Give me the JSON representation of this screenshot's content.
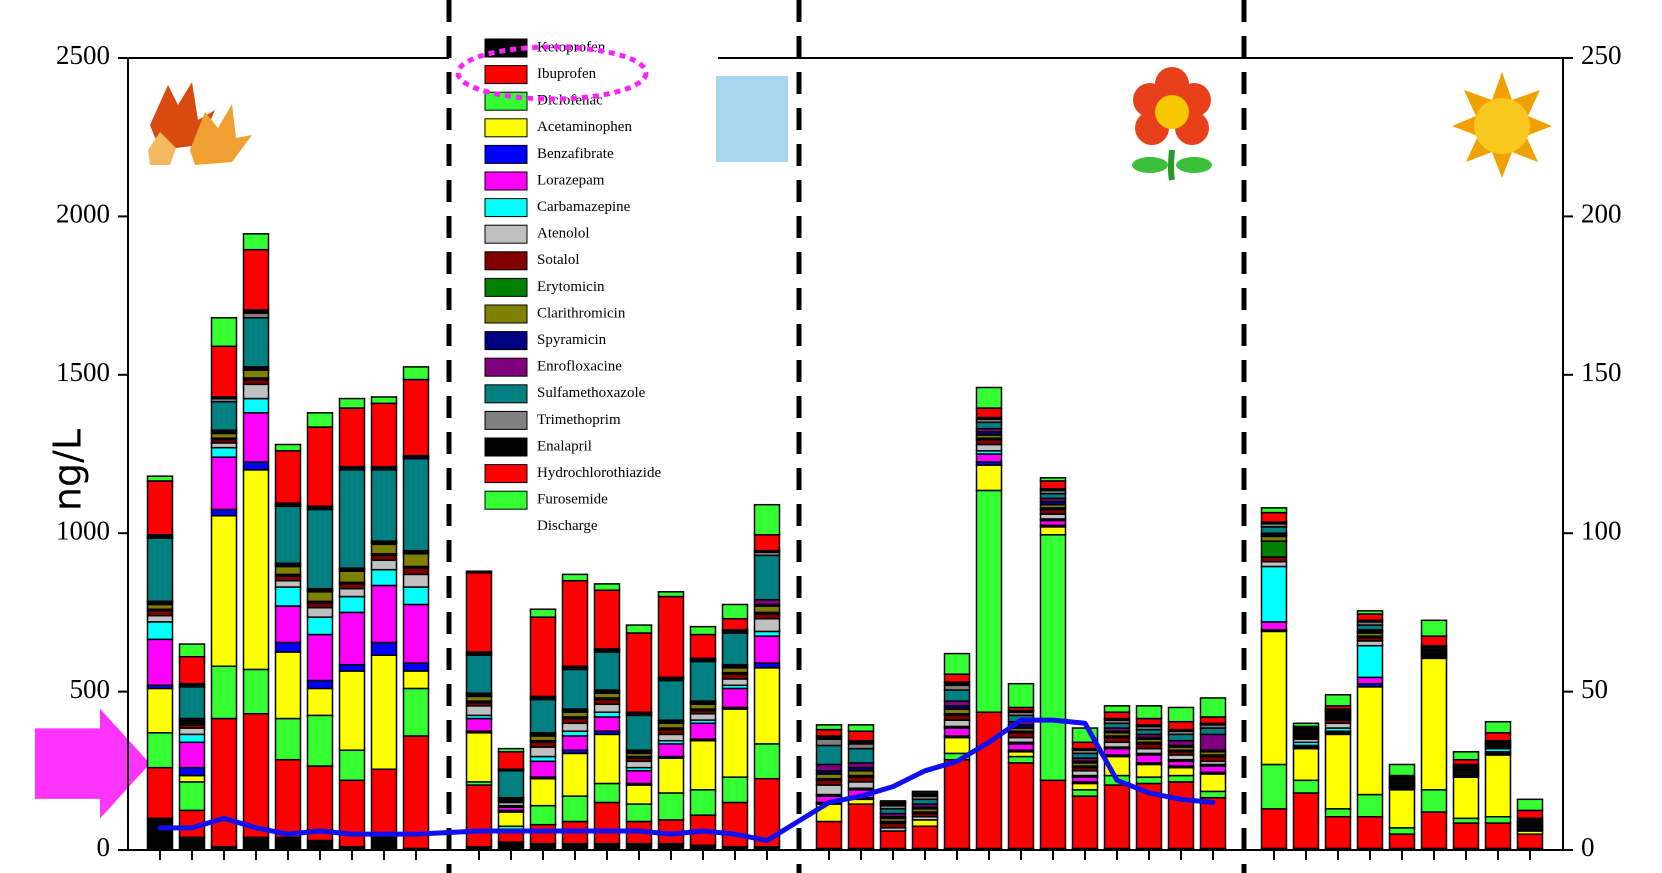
{
  "chart_data": {
    "type": "bar",
    "stacked": true,
    "ylabel": "ng/L",
    "categories": [
      null,
      null,
      null,
      null,
      null,
      null,
      null,
      null,
      null,
      null,
      null,
      null,
      null,
      null,
      null,
      null,
      null,
      null,
      null,
      null,
      null,
      null,
      null,
      null,
      null,
      null,
      null,
      null,
      null,
      null,
      null,
      null,
      null,
      null,
      null,
      null,
      null,
      null,
      null,
      null,
      null
    ],
    "ylim": [
      0,
      2500
    ],
    "yticks": [
      0,
      500,
      1000,
      1500,
      2000,
      2500
    ],
    "y2lim": [
      0,
      250
    ],
    "y2ticks": [
      0,
      50,
      100,
      150,
      200,
      250
    ],
    "series": [
      {
        "name": "Ketoprofen",
        "color": "#000000",
        "values": [
          100,
          40,
          10,
          40,
          40,
          30,
          10,
          40,
          5,
          10,
          25,
          20,
          20,
          20,
          20,
          20,
          15,
          10,
          10,
          5,
          5,
          5,
          5,
          5,
          5,
          5,
          5,
          5,
          5,
          5,
          5,
          5,
          5,
          5,
          5,
          5,
          5,
          5,
          5,
          5,
          5
        ]
      },
      {
        "name": "Ibuprofen",
        "color": "#ff0000",
        "values": [
          160,
          85,
          405,
          390,
          245,
          235,
          210,
          215,
          355,
          195,
          40,
          60,
          70,
          130,
          70,
          75,
          95,
          140,
          215,
          85,
          140,
          55,
          70,
          280,
          430,
          270,
          215,
          165,
          200,
          205,
          210,
          160,
          125,
          175,
          100,
          100,
          45,
          115,
          80,
          80,
          45
        ]
      },
      {
        "name": "Diclofenac",
        "color": "#33ff33",
        "values": [
          110,
          90,
          165,
          140,
          130,
          160,
          95,
          0,
          150,
          10,
          10,
          60,
          80,
          60,
          55,
          85,
          80,
          80,
          110,
          0,
          0,
          0,
          0,
          20,
          700,
          20,
          775,
          20,
          30,
          20,
          20,
          20,
          140,
          40,
          25,
          70,
          20,
          70,
          15,
          20,
          0
        ]
      },
      {
        "name": "Acetaminophen",
        "color": "#ffff00",
        "values": [
          140,
          20,
          475,
          630,
          210,
          85,
          250,
          360,
          55,
          155,
          45,
          85,
          135,
          155,
          60,
          110,
          155,
          215,
          240,
          55,
          15,
          0,
          20,
          50,
          80,
          15,
          25,
          20,
          60,
          40,
          25,
          55,
          420,
          100,
          235,
          340,
          120,
          415,
          130,
          195,
          10
        ]
      },
      {
        "name": "Benzafibrate",
        "color": "#0000ff",
        "values": [
          10,
          25,
          20,
          25,
          30,
          25,
          20,
          40,
          25,
          5,
          5,
          5,
          10,
          10,
          5,
          5,
          5,
          5,
          15,
          5,
          5,
          0,
          0,
          5,
          10,
          5,
          5,
          5,
          5,
          5,
          5,
          5,
          5,
          5,
          5,
          10,
          5,
          5,
          5,
          5,
          5
        ]
      },
      {
        "name": "Lorazepam",
        "color": "#ff00ff",
        "values": [
          145,
          80,
          165,
          155,
          115,
          145,
          165,
          180,
          185,
          40,
          10,
          50,
          45,
          45,
          40,
          40,
          50,
          60,
          85,
          20,
          25,
          0,
          0,
          25,
          25,
          20,
          15,
          15,
          20,
          25,
          15,
          20,
          25,
          5,
          5,
          20,
          5,
          5,
          5,
          5,
          5
        ]
      },
      {
        "name": "Carbamazepine",
        "color": "#00ffff",
        "values": [
          55,
          25,
          30,
          45,
          60,
          55,
          50,
          50,
          55,
          10,
          5,
          15,
          15,
          15,
          10,
          10,
          10,
          10,
          15,
          5,
          5,
          0,
          0,
          5,
          10,
          5,
          5,
          5,
          5,
          5,
          5,
          5,
          175,
          10,
          10,
          100,
          5,
          5,
          5,
          10,
          5
        ]
      },
      {
        "name": "Atenolol",
        "color": "#c0c0c0",
        "values": [
          20,
          20,
          15,
          45,
          20,
          30,
          25,
          30,
          40,
          30,
          10,
          30,
          25,
          25,
          20,
          20,
          20,
          20,
          40,
          30,
          20,
          10,
          10,
          20,
          20,
          15,
          15,
          15,
          15,
          15,
          15,
          10,
          15,
          10,
          15,
          15,
          5,
          5,
          5,
          5,
          5
        ]
      },
      {
        "name": "Sotalol",
        "color": "#800000",
        "values": [
          15,
          10,
          10,
          15,
          15,
          15,
          15,
          15,
          20,
          10,
          5,
          15,
          15,
          15,
          10,
          15,
          10,
          15,
          15,
          15,
          15,
          15,
          10,
          15,
          15,
          15,
          15,
          10,
          15,
          15,
          10,
          15,
          15,
          5,
          10,
          10,
          5,
          5,
          5,
          5,
          5
        ]
      },
      {
        "name": "Erytomicin",
        "color": "#008000",
        "values": [
          5,
          5,
          5,
          5,
          5,
          5,
          5,
          5,
          5,
          5,
          0,
          5,
          5,
          5,
          5,
          5,
          5,
          5,
          5,
          5,
          5,
          5,
          5,
          5,
          5,
          5,
          5,
          5,
          5,
          5,
          5,
          5,
          50,
          0,
          5,
          5,
          0,
          0,
          0,
          0,
          0
        ]
      },
      {
        "name": "Clarithromicin",
        "color": "#808000",
        "values": [
          15,
          5,
          15,
          25,
          25,
          30,
          35,
          30,
          40,
          15,
          5,
          15,
          15,
          15,
          10,
          15,
          15,
          15,
          20,
          15,
          15,
          10,
          10,
          15,
          10,
          10,
          10,
          10,
          10,
          10,
          10,
          10,
          15,
          5,
          5,
          10,
          5,
          5,
          5,
          5,
          5
        ]
      },
      {
        "name": "Spyramicin",
        "color": "#000080",
        "values": [
          5,
          5,
          5,
          5,
          5,
          5,
          5,
          5,
          5,
          5,
          0,
          5,
          5,
          5,
          5,
          5,
          5,
          5,
          5,
          10,
          10,
          5,
          5,
          10,
          10,
          10,
          10,
          5,
          5,
          5,
          5,
          5,
          5,
          5,
          5,
          5,
          0,
          0,
          0,
          0,
          0
        ]
      },
      {
        "name": "Enrofloxacine",
        "color": "#800080",
        "values": [
          5,
          5,
          5,
          5,
          5,
          5,
          5,
          5,
          5,
          5,
          5,
          5,
          5,
          5,
          5,
          5,
          5,
          5,
          15,
          20,
          15,
          10,
          10,
          15,
          10,
          10,
          10,
          10,
          10,
          10,
          15,
          50,
          5,
          5,
          5,
          5,
          0,
          0,
          0,
          0,
          0
        ]
      },
      {
        "name": "Sulfamethoxazole",
        "color": "#008080",
        "values": [
          200,
          100,
          90,
          155,
          180,
          250,
          310,
          225,
          290,
          120,
          85,
          105,
          125,
          120,
          110,
          125,
          125,
          100,
          140,
          60,
          45,
          15,
          15,
          35,
          20,
          20,
          15,
          15,
          15,
          15,
          20,
          20,
          20,
          5,
          5,
          15,
          5,
          5,
          5,
          5,
          5
        ]
      },
      {
        "name": "Trimethoprim",
        "color": "#808080",
        "values": [
          5,
          5,
          10,
          15,
          5,
          5,
          5,
          5,
          5,
          5,
          0,
          5,
          5,
          5,
          5,
          5,
          5,
          5,
          10,
          20,
          15,
          10,
          10,
          15,
          10,
          10,
          10,
          10,
          10,
          10,
          10,
          10,
          10,
          5,
          5,
          10,
          0,
          0,
          0,
          0,
          0
        ]
      },
      {
        "name": "Enalapril",
        "color": "#000000",
        "values": [
          5,
          5,
          5,
          10,
          5,
          5,
          5,
          5,
          5,
          5,
          5,
          5,
          5,
          5,
          5,
          5,
          5,
          5,
          5,
          10,
          10,
          5,
          5,
          10,
          5,
          5,
          5,
          5,
          5,
          5,
          5,
          5,
          5,
          5,
          5,
          5,
          5,
          5,
          5,
          5,
          5
        ]
      },
      {
        "name": "Hydrochlorothiazide",
        "color": "#ff0000",
        "values": [
          170,
          85,
          160,
          190,
          165,
          250,
          185,
          200,
          240,
          250,
          55,
          250,
          270,
          185,
          250,
          255,
          75,
          35,
          50,
          20,
          30,
          5,
          5,
          25,
          30,
          10,
          25,
          20,
          20,
          20,
          25,
          20,
          30,
          5,
          10,
          20,
          5,
          30,
          15,
          25,
          25
        ]
      },
      {
        "name": "Furosemide",
        "color": "#33ff33",
        "values": [
          15,
          40,
          90,
          50,
          20,
          45,
          30,
          20,
          40,
          5,
          10,
          25,
          20,
          20,
          25,
          15,
          25,
          45,
          95,
          15,
          20,
          5,
          5,
          65,
          65,
          75,
          10,
          45,
          20,
          40,
          45,
          60,
          15,
          10,
          35,
          10,
          35,
          50,
          25,
          35,
          35
        ]
      },
      {
        "name": "Discharge",
        "type": "line",
        "axis": "y2",
        "color": "#1010ee",
        "values": [
          7,
          7,
          10,
          7,
          5,
          6,
          5,
          5,
          5,
          6,
          6,
          6,
          6,
          6,
          6,
          5,
          6,
          5,
          3,
          15,
          17,
          20,
          25,
          28,
          34,
          41,
          41,
          40,
          22,
          18,
          16,
          15,
          null,
          null,
          null,
          null,
          null,
          null,
          null,
          null,
          null
        ]
      }
    ]
  }
}
